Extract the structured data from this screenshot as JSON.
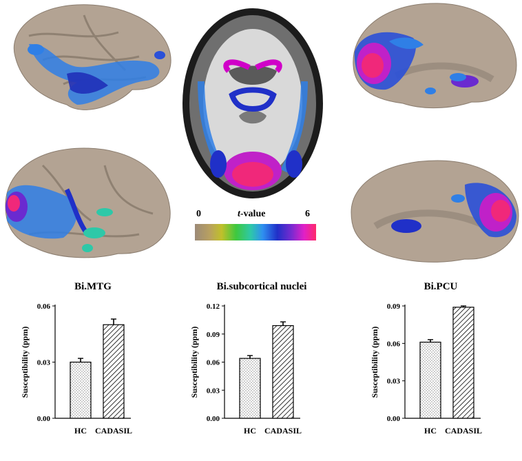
{
  "colorbar": {
    "min_label": "0",
    "label_italic": "t",
    "label_rest": "-value",
    "max_label": "6"
  },
  "panel_titles": [
    "Bi.MTG",
    "Bi.subcortical nuclei",
    "Bi.PCU"
  ],
  "chart_data": [
    {
      "type": "bar",
      "title": "Bi.MTG",
      "ylabel": "Susceptibility (ppm)",
      "categories": [
        "HC",
        "CADASIL"
      ],
      "values": [
        0.03,
        0.05
      ],
      "errors": [
        0.002,
        0.003
      ],
      "ylim": [
        0,
        0.06
      ],
      "yticks": [
        "0.00",
        "0.03",
        "0.06"
      ],
      "patterns": [
        "dots",
        "hatch"
      ]
    },
    {
      "type": "bar",
      "title": "Bi.subcortical nuclei",
      "ylabel": "Susceptibility (ppm)",
      "categories": [
        "HC",
        "CADASIL"
      ],
      "values": [
        0.064,
        0.099
      ],
      "errors": [
        0.003,
        0.004
      ],
      "ylim": [
        0,
        0.12
      ],
      "yticks": [
        "0.00",
        "0.03",
        "0.06",
        "0.09",
        "0.12"
      ],
      "patterns": [
        "dots",
        "hatch"
      ]
    },
    {
      "type": "bar",
      "title": "Bi.PCU",
      "ylabel": "Susceptibility (ppm)",
      "categories": [
        "HC",
        "CADASIL"
      ],
      "values": [
        0.061,
        0.089
      ],
      "errors": [
        0.002,
        0.001
      ],
      "ylim": [
        0,
        0.09
      ],
      "yticks": [
        "0.00",
        "0.03",
        "0.06",
        "0.09"
      ],
      "patterns": [
        "dots",
        "hatch"
      ]
    }
  ]
}
